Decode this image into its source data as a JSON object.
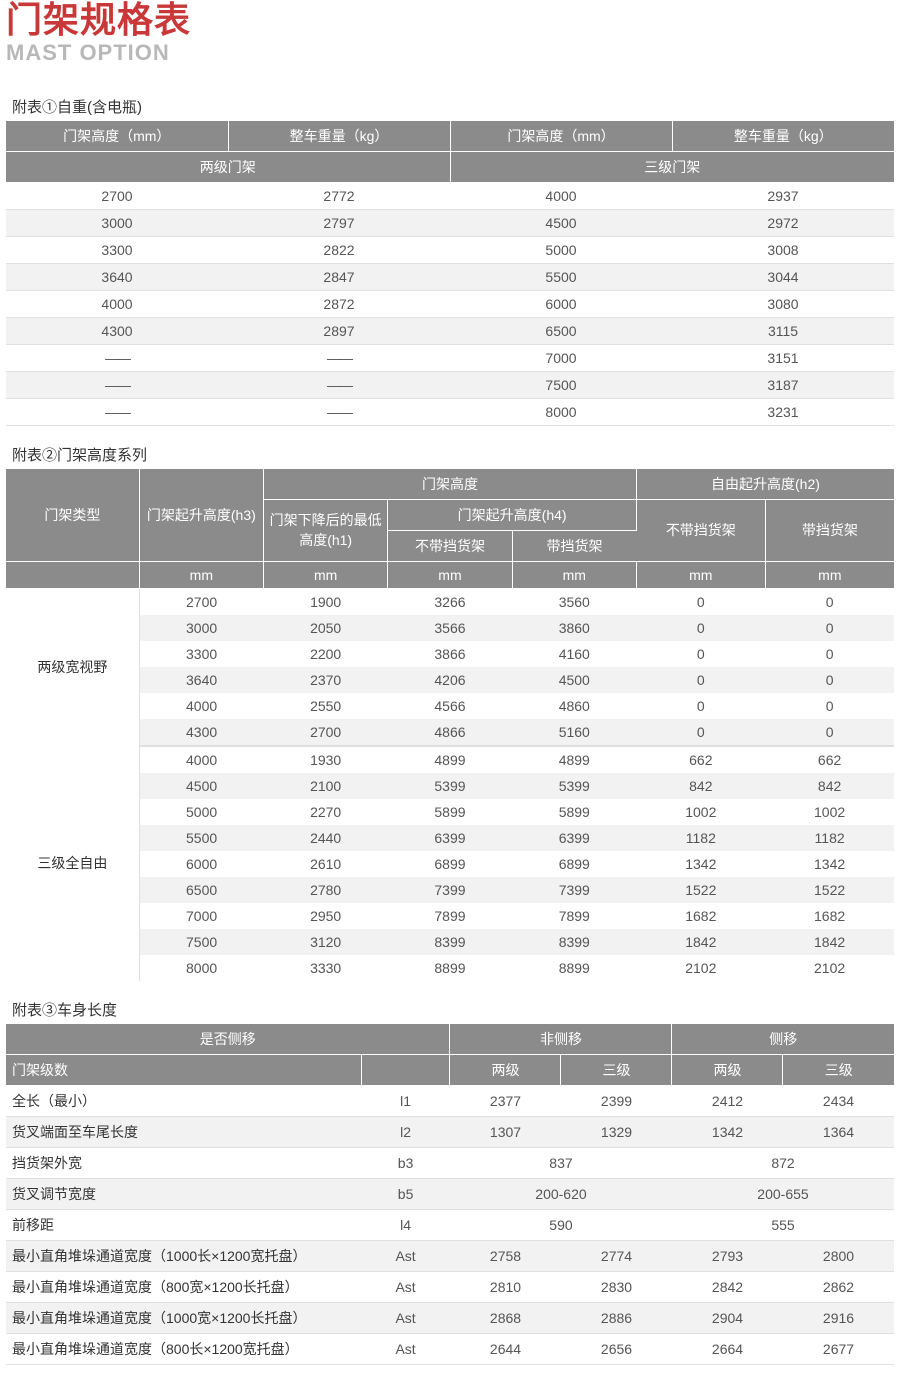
{
  "title_cn": "门架规格表",
  "title_en": "MAST OPTION",
  "t1": {
    "caption": "附表①自重(含电瓶)",
    "headers": [
      "门架高度（mm）",
      "整车重量（kg）",
      "门架高度（mm）",
      "整车重量（kg）"
    ],
    "subheaders": [
      "两级门架",
      "三级门架"
    ],
    "rows": [
      [
        "2700",
        "2772",
        "4000",
        "2937"
      ],
      [
        "3000",
        "2797",
        "4500",
        "2972"
      ],
      [
        "3300",
        "2822",
        "5000",
        "3008"
      ],
      [
        "3640",
        "2847",
        "5500",
        "3044"
      ],
      [
        "4000",
        "2872",
        "6000",
        "3080"
      ],
      [
        "4300",
        "2897",
        "6500",
        "3115"
      ],
      [
        "——",
        "——",
        "7000",
        "3151"
      ],
      [
        "——",
        "——",
        "7500",
        "3187"
      ],
      [
        "——",
        "——",
        "8000",
        "3231"
      ]
    ]
  },
  "t2": {
    "caption": "附表②门架高度系列",
    "top": {
      "c0": "门架类型",
      "c1": "门架起升高度(h3)",
      "c2_span": "门架高度",
      "c3_span": "自由起升高度(h2)",
      "c2a": "门架下降后的最低高度(h1)",
      "c2b_span": "门架起升高度(h4)",
      "c2b_nobr": "不带挡货架",
      "c2b_br": "带挡货架",
      "c3_nobr": "不带挡货架",
      "c3_br": "带挡货架",
      "unit": "mm"
    },
    "groups": [
      {
        "label": "两级宽视野",
        "rows": [
          [
            "2700",
            "1900",
            "3266",
            "3560",
            "0",
            "0"
          ],
          [
            "3000",
            "2050",
            "3566",
            "3860",
            "0",
            "0"
          ],
          [
            "3300",
            "2200",
            "3866",
            "4160",
            "0",
            "0"
          ],
          [
            "3640",
            "2370",
            "4206",
            "4500",
            "0",
            "0"
          ],
          [
            "4000",
            "2550",
            "4566",
            "4860",
            "0",
            "0"
          ],
          [
            "4300",
            "2700",
            "4866",
            "5160",
            "0",
            "0"
          ]
        ]
      },
      {
        "label": "三级全自由",
        "rows": [
          [
            "4000",
            "1930",
            "4899",
            "4899",
            "662",
            "662"
          ],
          [
            "4500",
            "2100",
            "5399",
            "5399",
            "842",
            "842"
          ],
          [
            "5000",
            "2270",
            "5899",
            "5899",
            "1002",
            "1002"
          ],
          [
            "5500",
            "2440",
            "6399",
            "6399",
            "1182",
            "1182"
          ],
          [
            "6000",
            "2610",
            "6899",
            "6899",
            "1342",
            "1342"
          ],
          [
            "6500",
            "2780",
            "7399",
            "7399",
            "1522",
            "1522"
          ],
          [
            "7000",
            "2950",
            "7899",
            "7899",
            "1682",
            "1682"
          ],
          [
            "7500",
            "3120",
            "8399",
            "8399",
            "1842",
            "1842"
          ],
          [
            "8000",
            "3330",
            "8899",
            "8899",
            "2102",
            "2102"
          ]
        ]
      }
    ]
  },
  "t3": {
    "caption": "附表③车身长度",
    "head1": [
      "是否侧移",
      "",
      "非侧移",
      "侧移"
    ],
    "head2": [
      "门架级数",
      "",
      "两级",
      "三级",
      "两级",
      "三级"
    ],
    "rows": [
      {
        "label": "全长（最小）",
        "sym": "l1",
        "v": [
          "2377",
          "2399",
          "2412",
          "2434"
        ]
      },
      {
        "label": "货叉端面至车尾长度",
        "sym": "l2",
        "v": [
          "1307",
          "1329",
          "1342",
          "1364"
        ]
      },
      {
        "label": "挡货架外宽",
        "sym": "b3",
        "v2": [
          "837",
          "872"
        ]
      },
      {
        "label": "货叉调节宽度",
        "sym": "b5",
        "v2": [
          "200-620",
          "200-655"
        ]
      },
      {
        "label": "前移距",
        "sym": "l4",
        "v2": [
          "590",
          "555"
        ]
      },
      {
        "label": "最小直角堆垛通道宽度（1000长×1200宽托盘）",
        "sym": "Ast",
        "v": [
          "2758",
          "2774",
          "2793",
          "2800"
        ]
      },
      {
        "label": "最小直角堆垛通道宽度（800宽×1200长托盘）",
        "sym": "Ast",
        "v": [
          "2810",
          "2830",
          "2842",
          "2862"
        ]
      },
      {
        "label": "最小直角堆垛通道宽度（1000宽×1200长托盘）",
        "sym": "Ast",
        "v": [
          "2868",
          "2886",
          "2904",
          "2916"
        ]
      },
      {
        "label": "最小直角堆垛通道宽度（800长×1200宽托盘）",
        "sym": "Ast",
        "v": [
          "2644",
          "2656",
          "2664",
          "2677"
        ]
      }
    ]
  }
}
